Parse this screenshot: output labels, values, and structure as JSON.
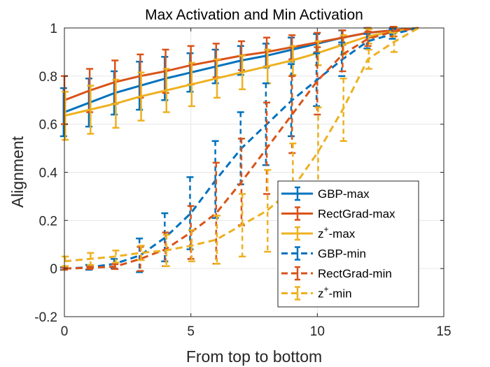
{
  "chart_data": {
    "type": "line",
    "title": "Max Activation and Min Activation",
    "xlabel": "From top to bottom",
    "ylabel": "Alignment",
    "xlim": [
      0,
      15
    ],
    "ylim": [
      -0.2,
      1
    ],
    "xticks": [
      0,
      5,
      10,
      15
    ],
    "xtick_labels": [
      "0",
      "5",
      "10",
      "15"
    ],
    "yticks": [
      -0.2,
      0,
      0.2,
      0.4,
      0.6,
      0.8,
      1
    ],
    "ytick_labels": [
      "-0.2",
      "0",
      "0.2",
      "0.4",
      "0.6",
      "0.8",
      "1"
    ],
    "grid": true,
    "legend_position": "bottom-right",
    "x": [
      0,
      1,
      2,
      3,
      4,
      5,
      6,
      7,
      8,
      9,
      10,
      11,
      12,
      13,
      14
    ],
    "series": [
      {
        "name": "GBP-max",
        "legend_label": "GBP-max",
        "color": "#0072BD",
        "dash": "solid",
        "values": [
          0.65,
          0.69,
          0.73,
          0.76,
          0.79,
          0.815,
          0.84,
          0.865,
          0.885,
          0.91,
          0.935,
          0.96,
          0.98,
          0.99,
          1.0
        ],
        "err": [
          0.1,
          0.1,
          0.09,
          0.1,
          0.09,
          0.08,
          0.07,
          0.06,
          0.05,
          0.05,
          0.04,
          0.03,
          0.02,
          0.01,
          0.0
        ]
      },
      {
        "name": "RectGrad-max",
        "legend_label": "RectGrad-max",
        "color": "#D95319",
        "dash": "solid",
        "values": [
          0.7,
          0.74,
          0.775,
          0.8,
          0.82,
          0.845,
          0.865,
          0.885,
          0.9,
          0.92,
          0.94,
          0.96,
          0.98,
          0.99,
          1.0
        ],
        "err": [
          0.1,
          0.09,
          0.09,
          0.09,
          0.09,
          0.08,
          0.07,
          0.06,
          0.06,
          0.05,
          0.04,
          0.03,
          0.02,
          0.01,
          0.0
        ]
      },
      {
        "name": "z+-max",
        "legend_label": "z",
        "legend_sup": "+",
        "legend_suffix": "-max",
        "color": "#EDB120",
        "dash": "solid",
        "values": [
          0.635,
          0.66,
          0.685,
          0.715,
          0.74,
          0.765,
          0.79,
          0.815,
          0.84,
          0.865,
          0.895,
          0.93,
          0.965,
          0.985,
          1.0
        ],
        "err": [
          0.1,
          0.1,
          0.1,
          0.1,
          0.09,
          0.09,
          0.08,
          0.07,
          0.07,
          0.06,
          0.05,
          0.04,
          0.03,
          0.02,
          0.0
        ]
      },
      {
        "name": "GBP-min",
        "legend_label": "GBP-min",
        "color": "#0072BD",
        "dash": "dashed",
        "values": [
          0.0,
          0.005,
          0.02,
          0.055,
          0.13,
          0.23,
          0.37,
          0.5,
          0.6,
          0.7,
          0.785,
          0.87,
          0.945,
          0.975,
          1.0
        ],
        "err": [
          0.005,
          0.01,
          0.02,
          0.07,
          0.1,
          0.15,
          0.16,
          0.15,
          0.17,
          0.15,
          0.11,
          0.07,
          0.03,
          0.02,
          0.0
        ]
      },
      {
        "name": "RectGrad-min",
        "legend_label": "RectGrad-min",
        "color": "#D95319",
        "dash": "dashed",
        "values": [
          0.0,
          0.003,
          0.008,
          0.04,
          0.08,
          0.15,
          0.23,
          0.36,
          0.5,
          0.64,
          0.78,
          0.89,
          0.955,
          0.985,
          1.0
        ],
        "err": [
          0.005,
          0.005,
          0.01,
          0.05,
          0.07,
          0.11,
          0.21,
          0.18,
          0.19,
          0.16,
          0.14,
          0.07,
          0.03,
          0.02,
          0.0
        ]
      },
      {
        "name": "z+-min",
        "legend_label": "z",
        "legend_sup": "+",
        "legend_suffix": "-min",
        "color": "#EDB120",
        "dash": "dashed",
        "values": [
          0.03,
          0.04,
          0.05,
          0.065,
          0.075,
          0.095,
          0.12,
          0.18,
          0.24,
          0.33,
          0.48,
          0.66,
          0.87,
          0.94,
          1.0
        ],
        "err": [
          0.02,
          0.025,
          0.025,
          0.03,
          0.065,
          0.065,
          0.1,
          0.13,
          0.17,
          0.19,
          0.19,
          0.13,
          0.04,
          0.04,
          0.0
        ]
      }
    ]
  }
}
